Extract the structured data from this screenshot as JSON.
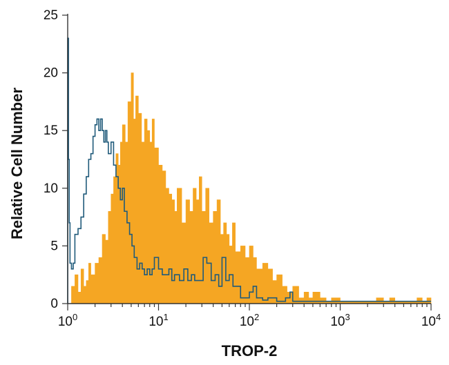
{
  "chart_data": {
    "type": "area",
    "xlabel": "TROP-2",
    "ylabel": "Relative Cell Number",
    "x_scale": "log",
    "xlim": [
      1,
      10000
    ],
    "ylim": [
      0,
      25
    ],
    "x_ticks": [
      {
        "value": 1,
        "base": "10",
        "exp": "0"
      },
      {
        "value": 10,
        "base": "10",
        "exp": "1"
      },
      {
        "value": 100,
        "base": "10",
        "exp": "2"
      },
      {
        "value": 1000,
        "base": "10",
        "exp": "3"
      },
      {
        "value": 10000,
        "base": "10",
        "exp": "4"
      }
    ],
    "y_ticks": [
      "0",
      "5",
      "10",
      "15",
      "20",
      "25"
    ],
    "grid": false,
    "series": [
      {
        "color": "#F5A623",
        "style": "filled-histogram",
        "x": [
          1.0,
          1.1,
          1.2,
          1.3,
          1.4,
          1.5,
          1.6,
          1.7,
          1.8,
          2.0,
          2.2,
          2.4,
          2.6,
          2.8,
          3.0,
          3.2,
          3.4,
          3.6,
          3.8,
          4.0,
          4.3,
          4.6,
          5.0,
          5.3,
          5.6,
          6.0,
          6.5,
          7.0,
          7.5,
          8.0,
          8.5,
          9.0,
          10,
          11,
          12,
          13,
          14,
          15,
          16,
          18,
          20,
          22,
          24,
          26,
          28,
          30,
          33,
          36,
          40,
          44,
          48,
          52,
          56,
          60,
          65,
          70,
          80,
          90,
          100,
          110,
          120,
          140,
          160,
          180,
          200,
          230,
          260,
          300,
          350,
          400,
          450,
          500,
          600,
          700,
          800,
          1000,
          1500,
          2000,
          2500,
          3000,
          3500,
          4000,
          5000,
          6000,
          7000,
          8000,
          9000,
          10000
        ],
        "values": [
          0,
          1.5,
          2.5,
          1,
          3,
          1.5,
          2,
          3.5,
          2.5,
          3.5,
          4,
          6,
          5.5,
          8,
          9.5,
          11,
          13,
          12,
          14,
          15.5,
          14,
          17.5,
          20,
          16,
          18,
          16.5,
          14,
          16,
          15,
          14,
          16,
          13.5,
          12,
          11.5,
          10,
          9.5,
          9,
          8,
          10,
          7,
          9,
          8,
          10,
          9,
          11,
          8,
          10,
          7,
          8,
          9,
          6,
          7,
          6,
          5,
          7,
          4.5,
          5,
          4,
          5,
          4,
          3,
          3.5,
          3,
          2,
          2.5,
          1.5,
          1,
          1.5,
          0.5,
          1,
          0.5,
          1,
          0.5,
          0.2,
          0.5,
          0.2,
          0.2,
          0.2,
          0.5,
          0.2,
          0.5,
          0.2,
          0.2,
          0.2,
          0.5,
          0.2,
          0.5,
          0.5
        ]
      },
      {
        "color": "#1F5A7A",
        "style": "open-histogram",
        "x": [
          1.0,
          1.02,
          1.04,
          1.06,
          1.1,
          1.15,
          1.2,
          1.3,
          1.4,
          1.5,
          1.6,
          1.7,
          1.8,
          1.9,
          2.0,
          2.1,
          2.2,
          2.3,
          2.4,
          2.5,
          2.6,
          2.7,
          2.8,
          3.0,
          3.2,
          3.4,
          3.6,
          3.8,
          4.0,
          4.2,
          4.5,
          4.8,
          5.1,
          5.4,
          5.8,
          6.2,
          6.6,
          7.0,
          7.5,
          8.0,
          8.5,
          9.0,
          10,
          11,
          12,
          13,
          14,
          15,
          17,
          19,
          21,
          23,
          25,
          28,
          31,
          34,
          38,
          42,
          46,
          50,
          55,
          60,
          66,
          72,
          80,
          90,
          100,
          110,
          120,
          140,
          160,
          200,
          250,
          280,
          300,
          10000
        ],
        "values": [
          23,
          12.5,
          7,
          3.5,
          3,
          3.5,
          6,
          6.5,
          7.5,
          9.5,
          11,
          12.5,
          13,
          14.5,
          15.5,
          16,
          15,
          16,
          15,
          14,
          15,
          14,
          13,
          14,
          12,
          11,
          10,
          9,
          10,
          8,
          7,
          6,
          5,
          4,
          3,
          3.5,
          3,
          2.5,
          3,
          2.5,
          3,
          4,
          3,
          2.5,
          2.5,
          3,
          2,
          2.5,
          2,
          3,
          2,
          2.5,
          2,
          2,
          4,
          3.5,
          2,
          2.5,
          1.5,
          4,
          2,
          2.5,
          1.5,
          1.5,
          0.5,
          0.5,
          1,
          1.5,
          0.5,
          0.3,
          0.5,
          0.2,
          0.5,
          1,
          0.2,
          0.2
        ]
      }
    ]
  }
}
